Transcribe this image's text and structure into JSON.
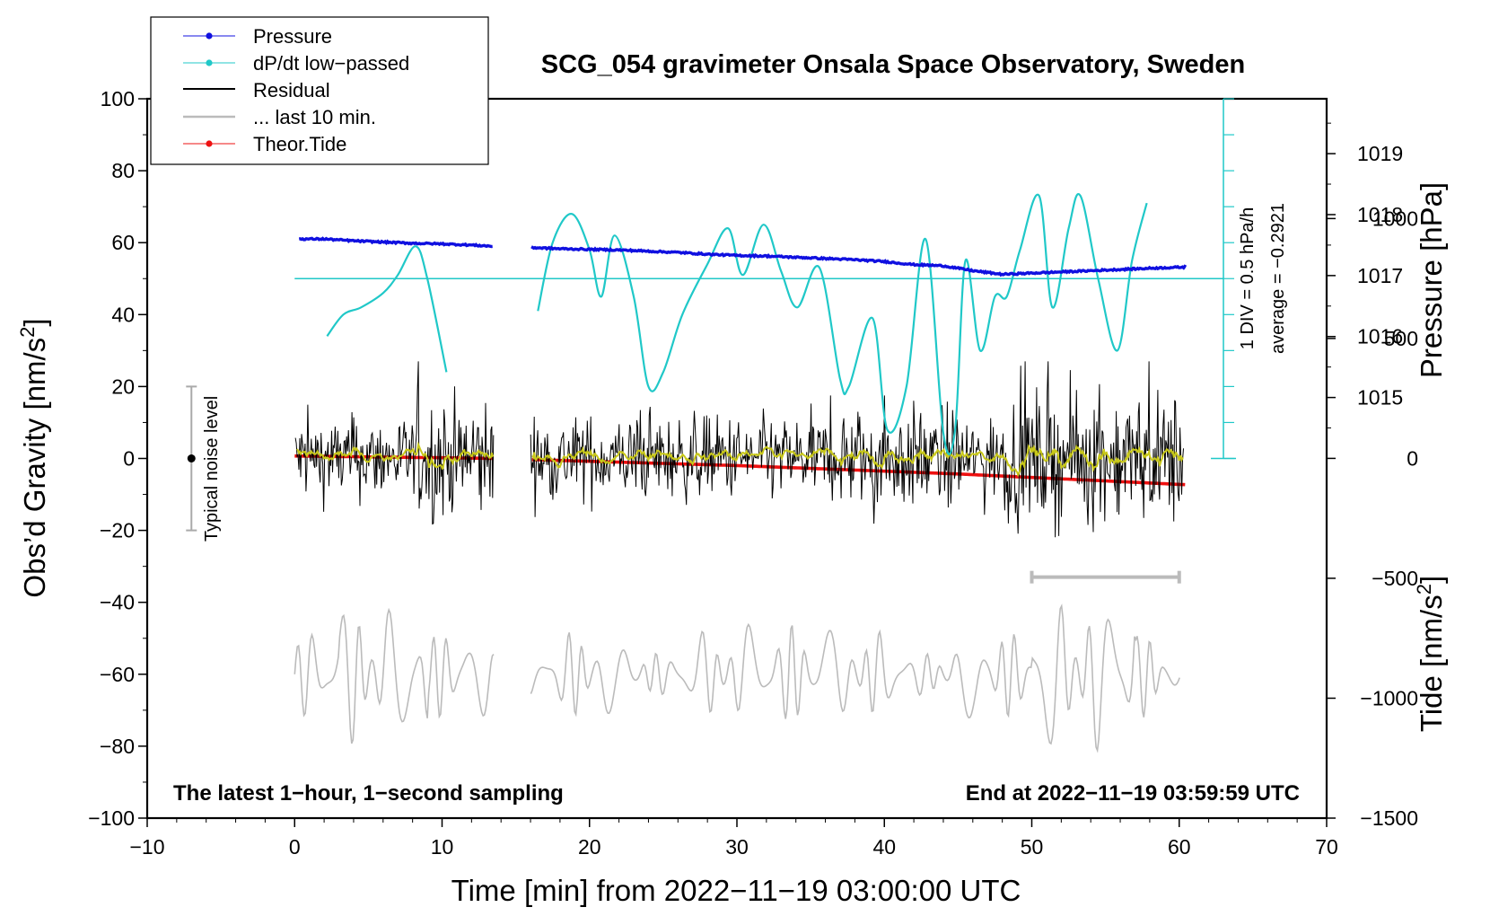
{
  "chart_data": {
    "type": "line",
    "title": "SCG_054 gravimeter Onsala Space Observatory, Sweden",
    "xlabel": "Time [min] from 2022−11−19 03:00:00 UTC",
    "ylabel_left_main": "Obs’d Gravity [nm/s",
    "ylabel_left_sup": "2",
    "ylabel_left_end": "]",
    "ylabel_right_pressure": "Pressure [hPa]",
    "ylabel_right_tide_main": "Tide [nm/s",
    "ylabel_right_tide_sup": "2",
    "ylabel_right_tide_end": "]",
    "xlim": [
      -10,
      70
    ],
    "ylim": [
      -100,
      100
    ],
    "x_ticks": [
      -10,
      0,
      10,
      20,
      30,
      40,
      50,
      60,
      70
    ],
    "x_tick_labels": [
      "−10",
      "0",
      "10",
      "20",
      "30",
      "40",
      "50",
      "60",
      "70"
    ],
    "y_ticks": [
      100,
      80,
      60,
      40,
      20,
      0,
      -20,
      -40,
      -60,
      -80,
      -100
    ],
    "y_tick_labels": [
      "100",
      "80",
      "60",
      "40",
      "20",
      "0",
      "−20",
      "−40",
      "−60",
      "−80",
      "−100"
    ],
    "pressure_ticks": [
      1015,
      1016,
      1017,
      1018,
      1019
    ],
    "pressure_tick_labels": [
      "1015",
      "1016",
      "1017",
      "1018",
      "1019"
    ],
    "pressure_axis_range_gravity_units": [
      0,
      100
    ],
    "pressure_axis_hpa_range": [
      1014,
      1019.9
    ],
    "tide_ticks": [
      1000,
      500,
      0,
      -500,
      -1000,
      -1500
    ],
    "tide_tick_labels": [
      "1000",
      "500",
      "0",
      "−500",
      "−1000",
      "−1500"
    ],
    "tide_axis_range": [
      -1500,
      1000
    ],
    "legend": {
      "position": "top-left",
      "items": [
        {
          "label": "Pressure",
          "color": "#1010e0",
          "marker": "dot"
        },
        {
          "label": "dP/dt low−passed",
          "color": "#20c8c8",
          "marker": "dot"
        },
        {
          "label": "Residual",
          "color": "#000000",
          "marker": "none"
        },
        {
          "label": "... last 10 min.",
          "color": "#bbbbbb",
          "marker": "none"
        },
        {
          "label": "Theor.Tide",
          "color": "#ee1111",
          "marker": "dot"
        }
      ]
    },
    "annotations": {
      "noise_label": "Typical noise level",
      "noise_bar_range": [
        -20,
        20
      ],
      "noise_bar_x": -7,
      "div_label": "1 DIV = 0.5 hPa/h",
      "average_label": "average = −0.2921",
      "last10_bar_x_range": [
        50,
        60
      ],
      "last10_bar_y": -33,
      "footer_left": "The latest 1−hour, 1−second sampling",
      "footer_right": "End at 2022−11−19 03:59:59 UTC"
    },
    "data_gap_minutes": [
      13.5,
      16.0
    ],
    "series": [
      {
        "name": "Pressure",
        "color": "#1010e0",
        "units": "hPa",
        "x": [
          0,
          2,
          4,
          6,
          8,
          10,
          12,
          13.5,
          16,
          18,
          20,
          22,
          24,
          26,
          28,
          30,
          32,
          34,
          36,
          38,
          40,
          42,
          44,
          46,
          48,
          50,
          52,
          54,
          56,
          58,
          60.5
        ],
        "y": [
          1017.6,
          1017.6,
          1017.57,
          1017.55,
          1017.53,
          1017.52,
          1017.5,
          1017.48,
          1017.46,
          1017.44,
          1017.43,
          1017.42,
          1017.4,
          1017.38,
          1017.35,
          1017.33,
          1017.32,
          1017.3,
          1017.28,
          1017.26,
          1017.23,
          1017.18,
          1017.16,
          1017.08,
          1017.02,
          1017.04,
          1017.06,
          1017.08,
          1017.1,
          1017.12,
          1017.14
        ]
      },
      {
        "name": "dP/dt low-passed",
        "color": "#20c8c8",
        "units": "gravity-axis position",
        "x": [
          2.2,
          3.3,
          4.5,
          6,
          7,
          8.2,
          9,
          10.3,
          16.5,
          17.5,
          18.8,
          20,
          20.8,
          21.7,
          23,
          24,
          25,
          26.3,
          28,
          29.4,
          30.4,
          31.8,
          33,
          34.1,
          35.6,
          37,
          37.6,
          39.2,
          40.2,
          41.5,
          42.8,
          44,
          44.8,
          45.5,
          46.5,
          47.5,
          48.3,
          49.2,
          50.5,
          51.4,
          52.5,
          53.3,
          54.5,
          55.8,
          56.8,
          57.8
        ],
        "y": [
          34,
          40,
          42,
          46,
          51,
          59,
          50,
          24,
          41,
          60,
          68,
          58,
          45,
          62,
          45,
          20,
          24,
          40,
          54,
          64,
          51,
          65,
          52,
          42,
          53,
          22,
          20,
          39,
          8,
          20,
          61,
          7,
          8,
          55,
          30,
          45,
          45,
          58,
          73,
          42,
          64,
          73,
          50,
          30,
          55,
          71
        ]
      },
      {
        "name": "Residual",
        "color": "#000000",
        "units": "nm/s^2",
        "x": [
          0,
          60
        ],
        "y_range": [
          -28,
          27
        ]
      },
      {
        "name": "... last 10 min.",
        "color": "#bbbbbb",
        "units": "nm/s^2",
        "x": [
          0,
          60
        ],
        "y_range": [
          -85,
          -36
        ]
      },
      {
        "name": "Theor.Tide",
        "color": "#ee1111",
        "units": "nm/s^2 (right tide axis)",
        "x": [
          0,
          13.5,
          16,
          30,
          45,
          60.5
        ],
        "y": [
          10,
          0,
          -5,
          -30,
          -65,
          -110
        ]
      }
    ]
  }
}
